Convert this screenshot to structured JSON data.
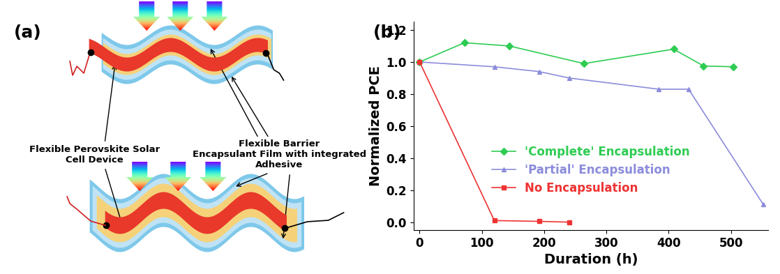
{
  "panel_labels": [
    "(a)",
    "(b)"
  ],
  "diagram": {
    "device_label": "Flexible Perovskite Solar\nCell Device",
    "film_label": "Flexible Barrier\nEncapsulant Film with integrated\nAdhesive"
  },
  "chart_data": {
    "type": "line",
    "x_label": "Duration (h)",
    "y_label": "Normalized PCE",
    "xlim": [
      -10,
      560
    ],
    "xticks": [
      0,
      100,
      200,
      300,
      400,
      500
    ],
    "ylim": [
      -0.05,
      1.25
    ],
    "yticks": [
      {
        "value": 0.0,
        "label": "0.0"
      },
      {
        "value": 0.2,
        "label": "0.2"
      },
      {
        "value": 0.4,
        "label": "0.4"
      },
      {
        "value": 0.6,
        "label": "0.6"
      },
      {
        "value": 0.8,
        "label": "0.8"
      },
      {
        "value": 1.0,
        "label": "1.0"
      },
      {
        "value": 1.2,
        "label": "1.2"
      }
    ],
    "legend": "lower center",
    "series": [
      {
        "name": "'Complete' Encapsulation",
        "color": "#2ecc52",
        "marker": "diamond",
        "line_style": "solid",
        "x": [
          0,
          72,
          144,
          264,
          408,
          456,
          504
        ],
        "values": [
          1.0,
          1.12,
          1.1,
          0.99,
          1.08,
          0.975,
          0.97
        ]
      },
      {
        "name": "'Partial' Encapsulation",
        "color": "#8c8cdc",
        "marker": "triangle",
        "line_style": "solid",
        "x": [
          0,
          120,
          192,
          240,
          384,
          432,
          552
        ],
        "values": [
          1.0,
          0.97,
          0.94,
          0.9,
          0.83,
          0.83,
          0.11
        ]
      },
      {
        "name": "No Encapsulation",
        "color": "#ee3333",
        "marker": "square",
        "line_style": "solid",
        "x": [
          0,
          120,
          192,
          240
        ],
        "values": [
          1.0,
          0.01,
          0.005,
          0.0
        ]
      }
    ]
  }
}
